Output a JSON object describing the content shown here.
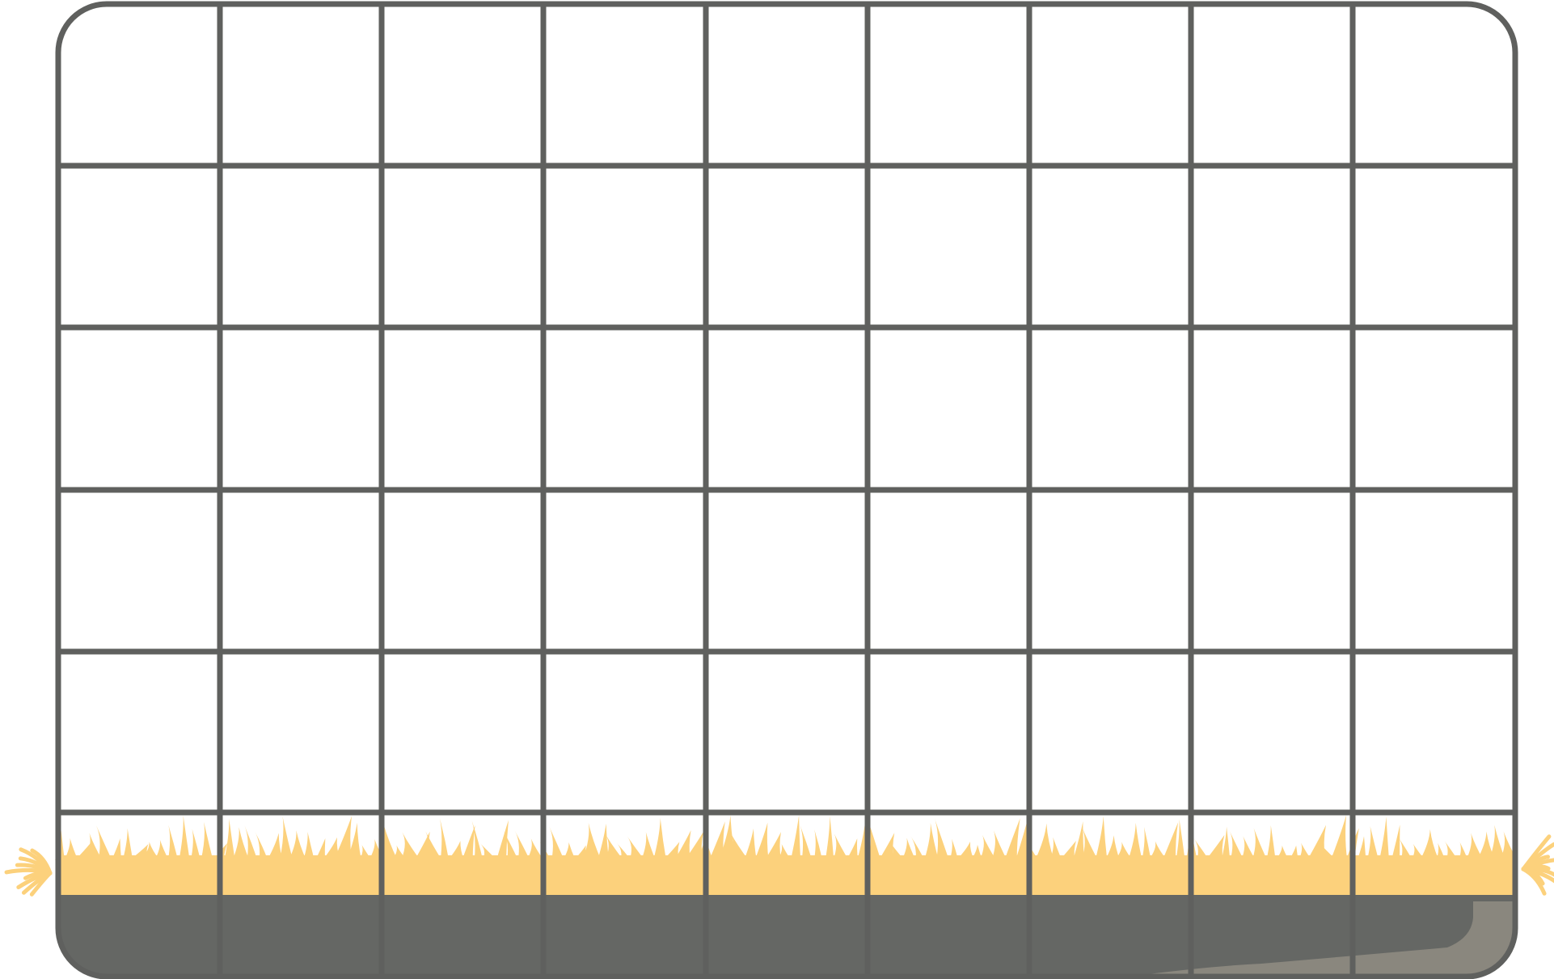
{
  "grid": {
    "columns": 9,
    "rows": 6
  },
  "colors": {
    "frame": "#5f605e",
    "gridline": "#5f605e",
    "cell_fill": "#ffffff",
    "grass": "#fcd17c",
    "ground": "#656764",
    "ground_highlight": "#8a877e"
  },
  "icons": {
    "grass": "grass-tufts",
    "ground": "soil-strip"
  }
}
